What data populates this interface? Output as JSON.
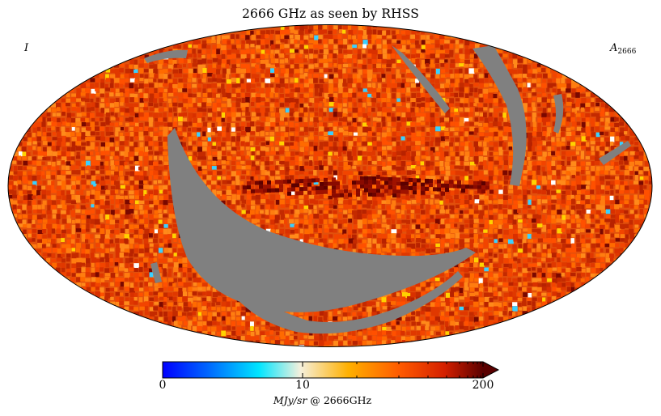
{
  "title": "2666 GHz as seen by RHSS",
  "stokes": "I",
  "component": {
    "symbol": "A",
    "subscript": "2666"
  },
  "projection": "Mollweide",
  "mask_color": "#808080",
  "colorbar": {
    "min": 0,
    "max": 200,
    "extend": "max",
    "ticks": [
      "0",
      "10",
      "200"
    ],
    "unit": {
      "quantity": "MJy/sr",
      "at": "@",
      "frequency": "2666GHz"
    },
    "colors": [
      "#0000ff",
      "#0066ff",
      "#00e5ff",
      "#f5f0dc",
      "#ffb000",
      "#ff5a00",
      "#d42000",
      "#5a0000"
    ]
  }
}
